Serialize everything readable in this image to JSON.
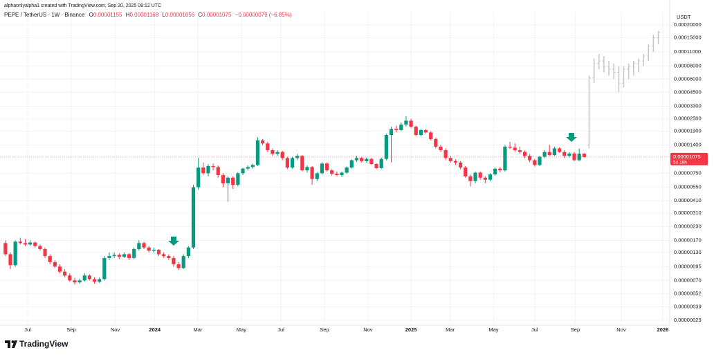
{
  "chart_data": {
    "type": "candlestick",
    "attribution": "alphaonlyalpha1 created with TradingView.com, Sep 20, 2025 08:12 UTC",
    "header": {
      "symbol": "PEPE / TetherUS · 1W · Binance",
      "fields": [
        {
          "label": "O",
          "value": "0.00001155"
        },
        {
          "label": "H",
          "value": "0.00001168"
        },
        {
          "label": "L",
          "value": "0.00001056"
        },
        {
          "label": "C",
          "value": "0.00001075"
        }
      ],
      "change": "−0.00000079 (−6.85%)"
    },
    "currency": "USDT",
    "price_tag": {
      "price": "0.00001075",
      "countdown": "5d 18h"
    },
    "brand": "TradingView",
    "log_scale": true,
    "grid": true,
    "up_color": "#089981",
    "down_color": "#f23645",
    "xlim": [
      -1.1,
      134.3
    ],
    "ylim": [
      2.6e-07,
      0.000263
    ],
    "xticks": [
      {
        "value": 4.5,
        "label": "Jul"
      },
      {
        "value": 13.3,
        "label": "Sep"
      },
      {
        "value": 22.2,
        "label": "Nov"
      },
      {
        "value": 30.2,
        "label": "2024"
      },
      {
        "value": 38.9,
        "label": "Mar"
      },
      {
        "value": 47.7,
        "label": "May"
      },
      {
        "value": 55.7,
        "label": "Jul"
      },
      {
        "value": 64.5,
        "label": "Sep"
      },
      {
        "value": 73.3,
        "label": "Nov"
      },
      {
        "value": 82.0,
        "label": "2025"
      },
      {
        "value": 89.9,
        "label": "Mar"
      },
      {
        "value": 98.7,
        "label": "May"
      },
      {
        "value": 107.0,
        "label": "Jul"
      },
      {
        "value": 115.2,
        "label": "Sep"
      },
      {
        "value": 124.5,
        "label": "Nov"
      },
      {
        "value": 132.9,
        "label": "2026"
      }
    ],
    "yticks": [
      {
        "value": 0.0002,
        "label": "0.00020000"
      },
      {
        "value": 0.00015,
        "label": "0.00015000"
      },
      {
        "value": 0.00011,
        "label": "0.00011000"
      },
      {
        "value": 8e-05,
        "label": "0.00008000"
      },
      {
        "value": 6e-05,
        "label": "0.00006000"
      },
      {
        "value": 4.5e-05,
        "label": "0.00004500"
      },
      {
        "value": 3.3e-05,
        "label": "0.00003300"
      },
      {
        "value": 2.5e-05,
        "label": "0.00002500"
      },
      {
        "value": 1.9e-05,
        "label": "0.00001900"
      },
      {
        "value": 1.4e-05,
        "label": "0.00001400"
      },
      {
        "value": 7.5e-06,
        "label": "0.00000750"
      },
      {
        "value": 5.5e-06,
        "label": "0.00000550"
      },
      {
        "value": 4.1e-06,
        "label": "0.00000410"
      },
      {
        "value": 3.1e-06,
        "label": "0.00000310"
      },
      {
        "value": 2.3e-06,
        "label": "0.00000230"
      },
      {
        "value": 1.7e-06,
        "label": "0.00000170"
      },
      {
        "value": 1.3e-06,
        "label": "0.00000130"
      },
      {
        "value": 9.5e-07,
        "label": "0.00000095"
      },
      {
        "value": 7e-07,
        "label": "0.00000070"
      },
      {
        "value": 5.2e-07,
        "label": "0.00000052"
      },
      {
        "value": 3.9e-07,
        "label": "0.00000039"
      },
      {
        "value": 2.9e-07,
        "label": "0.00000029"
      }
    ],
    "ohlc": [
      [
        1.6e-06,
        1.7e-06,
        1.2e-06,
        1.25e-06
      ],
      [
        1.25e-06,
        1.3e-06,
        9e-07,
        9.8e-07
      ],
      [
        9.8e-07,
        1.7e-06,
        9.5e-07,
        1.65e-06
      ],
      [
        1.65e-06,
        1.8e-06,
        1.55e-06,
        1.6e-06
      ],
      [
        1.6e-06,
        1.75e-06,
        1.5e-06,
        1.55e-06
      ],
      [
        1.55e-06,
        1.7e-06,
        1.5e-06,
        1.62e-06
      ],
      [
        1.62e-06,
        1.65e-06,
        1.45e-06,
        1.5e-06
      ],
      [
        1.5e-06,
        1.55e-06,
        1.35e-06,
        1.4e-06
      ],
      [
        1.4e-06,
        1.45e-06,
        1.15e-06,
        1.2e-06
      ],
      [
        1.2e-06,
        1.25e-06,
        1e-06,
        1.05e-06
      ],
      [
        1.05e-06,
        1.1e-06,
        9.2e-07,
        9.5e-07
      ],
      [
        9.5e-07,
        1e-06,
        8.2e-07,
        8.5e-07
      ],
      [
        8.5e-07,
        9e-07,
        7.5e-07,
        7.8e-07
      ],
      [
        7.8e-07,
        8.2e-07,
        6.8e-07,
        7e-07
      ],
      [
        7e-07,
        7.4e-07,
        6.4e-07,
        6.7e-07
      ],
      [
        6.7e-07,
        7.3e-07,
        6.5e-07,
        7e-07
      ],
      [
        7e-07,
        8.2e-07,
        6.8e-07,
        7.8e-07
      ],
      [
        7.8e-07,
        8e-07,
        7e-07,
        7.2e-07
      ],
      [
        7.2e-07,
        7.5e-07,
        6.5e-07,
        6.8e-07
      ],
      [
        6.8e-07,
        7.5e-07,
        6.6e-07,
        7.2e-07
      ],
      [
        7.2e-07,
        1.2e-06,
        7e-07,
        1.15e-06
      ],
      [
        1.15e-06,
        1.3e-06,
        1.1e-06,
        1.2e-06
      ],
      [
        1.2e-06,
        1.3e-06,
        1.15e-06,
        1.23e-06
      ],
      [
        1.23e-06,
        1.28e-06,
        1.12e-06,
        1.18e-06
      ],
      [
        1.18e-06,
        1.3e-06,
        1.15e-06,
        1.25e-06
      ],
      [
        1.25e-06,
        1.28e-06,
        1.1e-06,
        1.15e-06
      ],
      [
        1.15e-06,
        1.45e-06,
        1.12e-06,
        1.4e-06
      ],
      [
        1.4e-06,
        1.7e-06,
        1.35e-06,
        1.6e-06
      ],
      [
        1.6e-06,
        1.65e-06,
        1.4e-06,
        1.45e-06
      ],
      [
        1.45e-06,
        1.5e-06,
        1.3e-06,
        1.35e-06
      ],
      [
        1.35e-06,
        1.45e-06,
        1.3e-06,
        1.38e-06
      ],
      [
        1.38e-06,
        1.4e-06,
        1.2e-06,
        1.25e-06
      ],
      [
        1.25e-06,
        1.3e-06,
        1.15e-06,
        1.2e-06
      ],
      [
        1.2e-06,
        1.25e-06,
        1.1e-06,
        1.15e-06
      ],
      [
        1.15e-06,
        1.2e-06,
        9.5e-07,
        1e-06
      ],
      [
        1e-06,
        1.05e-06,
        8.8e-07,
        9.2e-07
      ],
      [
        9.2e-07,
        1.25e-06,
        9e-07,
        1.2e-06
      ],
      [
        1.2e-06,
        1.5e-06,
        1.15e-06,
        1.45e-06
      ],
      [
        1.45e-06,
        5.8e-06,
        1.4e-06,
        5.5e-06
      ],
      [
        5.5e-06,
        1.05e-05,
        5.2e-06,
        8.5e-06
      ],
      [
        8.5e-06,
        9.5e-06,
        7.2e-06,
        7.5e-06
      ],
      [
        7.5e-06,
        9.2e-06,
        7e-06,
        8.8e-06
      ],
      [
        8.8e-06,
        9.3e-06,
        8e-06,
        8.6e-06
      ],
      [
        8.6e-06,
        8.9e-06,
        6.8e-06,
        7.2e-06
      ],
      [
        7.2e-06,
        7.5e-06,
        5.5e-06,
        6e-06
      ],
      [
        6e-06,
        7e-06,
        4e-06,
        6.8e-06
      ],
      [
        6.8e-06,
        7e-06,
        5.3e-06,
        5.8e-06
      ],
      [
        5.8e-06,
        7.7e-06,
        5.6e-06,
        7.5e-06
      ],
      [
        7.5e-06,
        8.5e-06,
        7.2e-06,
        8.3e-06
      ],
      [
        8.3e-06,
        8.9e-06,
        8e-06,
        8.6e-06
      ],
      [
        8.6e-06,
        9.3e-06,
        8.3e-06,
        9e-06
      ],
      [
        9e-06,
        1.65e-05,
        8.8e-06,
        1.55e-05
      ],
      [
        1.55e-05,
        1.6e-05,
        1.4e-05,
        1.45e-05
      ],
      [
        1.45e-05,
        1.5e-05,
        1.2e-05,
        1.25e-05
      ],
      [
        1.25e-05,
        1.3e-05,
        1.1e-05,
        1.15e-05
      ],
      [
        1.15e-05,
        1.25e-05,
        1.1e-05,
        1.2e-05
      ],
      [
        1.2e-05,
        1.23e-05,
        1e-05,
        1.05e-05
      ],
      [
        1.05e-05,
        1.08e-05,
        8.2e-06,
        8.5e-06
      ],
      [
        8.5e-06,
        1.08e-05,
        8.3e-06,
        1.05e-05
      ],
      [
        1.05e-05,
        1.15e-05,
        1e-05,
        1.1e-05
      ],
      [
        1.1e-05,
        1.12e-05,
        7.8e-06,
        8e-06
      ],
      [
        8e-06,
        8.9e-06,
        7.6e-06,
        8.6e-06
      ],
      [
        8.6e-06,
        8.8e-06,
        5.8e-06,
        6.6e-06
      ],
      [
        6.6e-06,
        7.7e-06,
        6.3e-06,
        7.5e-06
      ],
      [
        7.5e-06,
        9.6e-06,
        7.3e-06,
        9.3e-06
      ],
      [
        9.3e-06,
        9.5e-06,
        7.8e-06,
        8e-06
      ],
      [
        8e-06,
        8.2e-06,
        7.1e-06,
        7.4e-06
      ],
      [
        7.4e-06,
        7.8e-06,
        7e-06,
        7.2e-06
      ],
      [
        7.2e-06,
        7.8e-06,
        6.9e-06,
        7.6e-06
      ],
      [
        7.6e-06,
        8.7e-06,
        7.4e-06,
        8.5e-06
      ],
      [
        8.5e-06,
        1.02e-05,
        8.3e-06,
        1e-05
      ],
      [
        1e-05,
        1.1e-05,
        9.6e-06,
        1.05e-05
      ],
      [
        1.05e-05,
        1.08e-05,
        9.5e-06,
        9.8e-06
      ],
      [
        9.8e-06,
        1.06e-05,
        9.5e-06,
        1.03e-05
      ],
      [
        1.03e-05,
        1.05e-05,
        9e-06,
        9.2e-06
      ],
      [
        9.2e-06,
        9.4e-06,
        8.2e-06,
        8.4e-06
      ],
      [
        8.4e-06,
        1.06e-05,
        8.2e-06,
        1.03e-05
      ],
      [
        1.03e-05,
        1.8e-05,
        1e-05,
        1.75e-05
      ],
      [
        1.75e-05,
        2.1e-05,
        9.5e-06,
        2e-05
      ],
      [
        2e-05,
        2.15e-05,
        1.85e-05,
        1.95e-05
      ],
      [
        1.95e-05,
        2.3e-05,
        1.9e-05,
        2.2e-05
      ],
      [
        2.2e-05,
        2.65e-05,
        2.1e-05,
        2.4e-05
      ],
      [
        2.4e-05,
        2.5e-05,
        2.05e-05,
        2.1e-05
      ],
      [
        2.1e-05,
        2.15e-05,
        1.7e-05,
        1.75e-05
      ],
      [
        1.75e-05,
        2e-05,
        1.7e-05,
        1.95e-05
      ],
      [
        1.95e-05,
        2e-05,
        1.8e-05,
        1.85e-05
      ],
      [
        1.85e-05,
        1.9e-05,
        1.55e-05,
        1.6e-05
      ],
      [
        1.6e-05,
        1.65e-05,
        1.3e-05,
        1.35e-05
      ],
      [
        1.35e-05,
        1.4e-05,
        1.2e-05,
        1.25e-05
      ],
      [
        1.25e-05,
        1.3e-05,
        1e-05,
        1.05e-05
      ],
      [
        1.05e-05,
        1.1e-05,
        9.5e-06,
        9.8e-06
      ],
      [
        9.8e-06,
        1.02e-05,
        9e-06,
        9.5e-06
      ],
      [
        9.5e-06,
        9.8e-06,
        8.2e-06,
        8.5e-06
      ],
      [
        8.5e-06,
        8.8e-06,
        6.8e-06,
        7e-06
      ],
      [
        7e-06,
        7.3e-06,
        5.6e-06,
        6.3e-06
      ],
      [
        6.3e-06,
        7.8e-06,
        6e-06,
        7.6e-06
      ],
      [
        7.6e-06,
        7.8e-06,
        6.5e-06,
        6.8e-06
      ],
      [
        6.8e-06,
        7e-06,
        6e-06,
        6.5e-06
      ],
      [
        6.5e-06,
        7.5e-06,
        6.3e-06,
        7.3e-06
      ],
      [
        7.3e-06,
        8.5e-06,
        7.1e-06,
        8.3e-06
      ],
      [
        8.3e-06,
        8.6e-06,
        7.7e-06,
        8e-06
      ],
      [
        8e-06,
        1.4e-05,
        7.8e-06,
        1.35e-05
      ],
      [
        1.35e-05,
        1.5e-05,
        1.28e-05,
        1.32e-05
      ],
      [
        1.32e-05,
        1.45e-05,
        1.2e-05,
        1.25e-05
      ],
      [
        1.25e-05,
        1.35e-05,
        1.15e-05,
        1.2e-05
      ],
      [
        1.2e-05,
        1.24e-05,
        1.05e-05,
        1.1e-05
      ],
      [
        1.1e-05,
        1.15e-05,
        9.6e-06,
        1e-05
      ],
      [
        1e-05,
        1.03e-05,
        8.7e-06,
        9e-06
      ],
      [
        9e-06,
        1.1e-05,
        8.8e-06,
        1.08e-05
      ],
      [
        1.08e-05,
        1.25e-05,
        1.05e-05,
        1.2e-05
      ],
      [
        1.2e-05,
        1.4e-05,
        1.1e-05,
        1.12e-05
      ],
      [
        1.12e-05,
        1.35e-05,
        1.1e-05,
        1.3e-05
      ],
      [
        1.3e-05,
        1.33e-05,
        1.18e-05,
        1.2e-05
      ],
      [
        1.2e-05,
        1.25e-05,
        1.05e-05,
        1.1e-05
      ],
      [
        1.1e-05,
        1.2e-05,
        1.06e-05,
        1.16e-05
      ],
      [
        1.16e-05,
        1.2e-05,
        9.8e-06,
        1e-05
      ],
      [
        1e-05,
        1.3e-05,
        9.8e-06,
        1.154e-05
      ],
      [
        1.155e-05,
        1.168e-05,
        1.056e-05,
        1.075e-05
      ]
    ],
    "projection": {
      "color": "#c8c8c8",
      "ohlc": [
        [
          1.4e-05,
          6.5e-05,
          1.3e-05,
          6.2e-05
        ],
        [
          6.2e-05,
          9.5e-05,
          5.5e-05,
          8.5e-05
        ],
        [
          8.5e-05,
          0.000105,
          7.5e-05,
          9e-05
        ],
        [
          9e-05,
          0.0001,
          7e-05,
          8e-05
        ],
        [
          8e-05,
          9e-05,
          6.5e-05,
          7.5e-05
        ],
        [
          7.5e-05,
          8.5e-05,
          6e-05,
          7e-05
        ],
        [
          7e-05,
          8e-05,
          4.5e-05,
          5.5e-05
        ],
        [
          5.5e-05,
          8e-05,
          5e-05,
          7.5e-05
        ],
        [
          7.5e-05,
          8.5e-05,
          6e-05,
          8e-05
        ],
        [
          8e-05,
          9e-05,
          6.5e-05,
          8.5e-05
        ],
        [
          8.5e-05,
          9.5e-05,
          7e-05,
          9e-05
        ],
        [
          9e-05,
          0.000105,
          8e-05,
          0.0001
        ],
        [
          0.0001,
          0.00013,
          9e-05,
          0.000125
        ],
        [
          0.000125,
          0.00016,
          0.00011,
          0.00015
        ],
        [
          0.00015,
          0.000175,
          0.00013,
          0.00017
        ]
      ]
    }
  }
}
